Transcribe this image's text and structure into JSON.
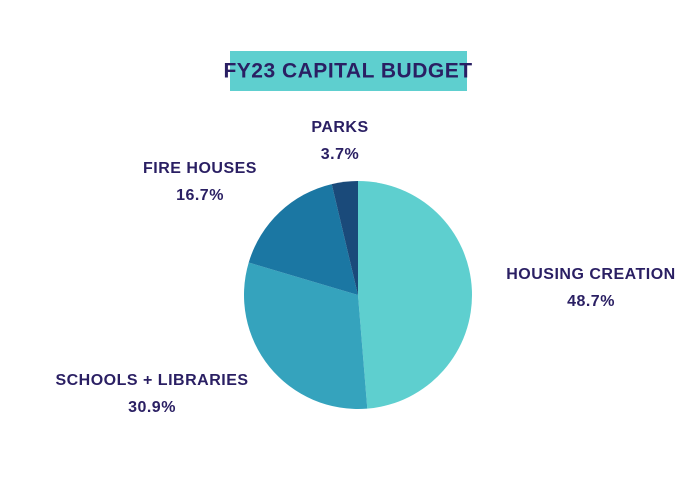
{
  "chart_data": {
    "type": "pie",
    "title": "FY23 CAPITAL BUDGET",
    "categories": [
      "HOUSING CREATION",
      "SCHOOLS + LIBRARIES",
      "FIRE HOUSES",
      "PARKS"
    ],
    "values": [
      48.7,
      30.9,
      16.7,
      3.7
    ],
    "value_labels": [
      "48.7%",
      "30.9%",
      "16.7%",
      "3.7%"
    ],
    "colors": [
      "#5ecfcf",
      "#35a3bd",
      "#1b77a3",
      "#1a4a7a"
    ]
  }
}
